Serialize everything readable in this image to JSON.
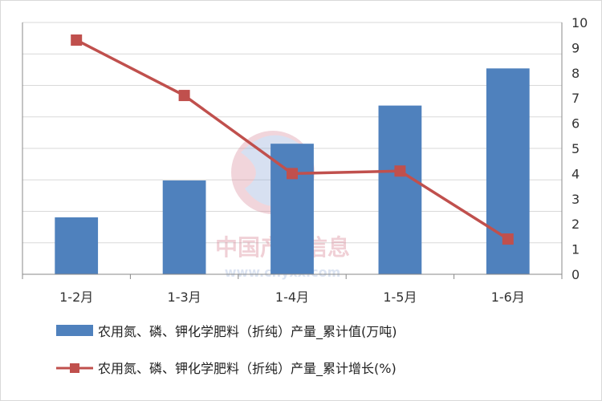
{
  "chart_data": {
    "type": "bar+line",
    "title": "",
    "categories": [
      "1-2月",
      "1-3月",
      "1-4月",
      "1-5月",
      "1-6月"
    ],
    "series": [
      {
        "name": "农用氮、磷、钾化学肥料（折纯）产量_累计值(万吨)",
        "type": "bar",
        "axis": "left",
        "color": "#4f81bd",
        "values": [
          904,
          1490,
          2074,
          2680,
          3270
        ]
      },
      {
        "name": "农用氮、磷、钾化学肥料（折纯）产量_累计增长(%)",
        "type": "line",
        "axis": "right",
        "color": "#c0504d",
        "values": [
          9.3,
          7.1,
          4.0,
          4.1,
          1.4
        ]
      }
    ],
    "left_axis": {
      "min": 0,
      "max": 4000,
      "step": 500
    },
    "right_axis": {
      "min": 0,
      "max": 10,
      "step": 1,
      "tick_labels": [
        "0",
        "1",
        "2",
        "3",
        "4",
        "5",
        "6",
        "7",
        "8",
        "9",
        "10"
      ]
    },
    "legend_position": "bottom",
    "grid": "horizontal",
    "watermark": {
      "text": "中国产业信息",
      "url": "www.chyxx.com"
    }
  }
}
